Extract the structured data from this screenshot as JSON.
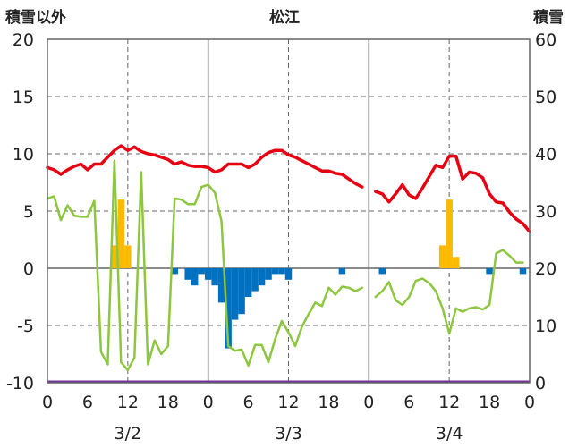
{
  "chart_data": {
    "type": "bar+line",
    "title": "松江",
    "ylabel_left": "積雪以外",
    "ylabel_right": "積雪",
    "ylim_left": [
      -10,
      20
    ],
    "ylim_right": [
      0,
      60
    ],
    "yticks_left": [
      "20",
      "15",
      "10",
      "5",
      "0",
      "-5",
      "-10"
    ],
    "yticks_right": [
      "60",
      "50",
      "40",
      "30",
      "20",
      "10",
      "0"
    ],
    "xlim_hours": [
      0,
      72
    ],
    "xtick_labels": [
      "0",
      "6",
      "12",
      "18",
      "0",
      "6",
      "12",
      "18",
      "0",
      "6",
      "12",
      "18",
      "0"
    ],
    "date_labels": [
      "3/2",
      "3/3",
      "3/4"
    ],
    "grid": true,
    "colors": {
      "temperature": "#e60012",
      "humidity_line": "#8dc63f",
      "snow_bar": "#fbb900",
      "precip_neg_bar": "#0070c0",
      "baseline": "#7030a0"
    },
    "series": [
      {
        "key": "temperature",
        "style": "line",
        "segments": [
          [
            [
              0,
              8.8
            ],
            [
              1,
              8.6
            ],
            [
              2,
              8.2
            ],
            [
              3,
              8.6
            ],
            [
              4,
              8.9
            ],
            [
              5,
              9.1
            ],
            [
              6,
              8.6
            ],
            [
              7,
              9.1
            ],
            [
              8,
              9.1
            ],
            [
              9,
              9.7
            ],
            [
              10,
              10.3
            ],
            [
              11,
              10.7
            ],
            [
              12,
              10.3
            ],
            [
              13,
              10.6
            ],
            [
              14,
              10.2
            ],
            [
              15,
              10.0
            ],
            [
              16,
              9.9
            ],
            [
              17,
              9.7
            ],
            [
              18,
              9.5
            ],
            [
              19,
              9.1
            ],
            [
              20,
              9.3
            ],
            [
              21,
              9.0
            ],
            [
              22,
              8.9
            ],
            [
              23,
              8.9
            ],
            [
              24,
              8.8
            ],
            [
              25,
              8.4
            ],
            [
              26,
              8.6
            ],
            [
              27,
              9.1
            ],
            [
              28,
              9.1
            ],
            [
              29,
              9.1
            ],
            [
              30,
              8.8
            ],
            [
              31,
              9.1
            ],
            [
              32,
              9.7
            ],
            [
              33,
              10.1
            ],
            [
              34,
              10.3
            ],
            [
              35,
              10.3
            ],
            [
              36,
              9.9
            ],
            [
              37,
              9.7
            ],
            [
              38,
              9.4
            ],
            [
              39,
              9.1
            ],
            [
              40,
              8.8
            ],
            [
              41,
              8.5
            ],
            [
              42,
              8.5
            ],
            [
              43,
              8.3
            ],
            [
              44,
              8.2
            ],
            [
              45,
              7.8
            ],
            [
              46,
              7.4
            ],
            [
              47,
              7.1
            ]
          ],
          [
            [
              49,
              6.7
            ],
            [
              50,
              6.5
            ],
            [
              51,
              5.8
            ],
            [
              52,
              6.5
            ],
            [
              53,
              7.3
            ],
            [
              54,
              6.4
            ],
            [
              55,
              6.1
            ],
            [
              56,
              7.0
            ],
            [
              57,
              8.0
            ],
            [
              58,
              9.0
            ],
            [
              59,
              8.8
            ],
            [
              60,
              9.8
            ],
            [
              61,
              9.8
            ],
            [
              62,
              7.8
            ],
            [
              63,
              8.4
            ],
            [
              64,
              8.3
            ],
            [
              65,
              7.9
            ],
            [
              66,
              6.5
            ],
            [
              67,
              5.8
            ],
            [
              68,
              5.7
            ],
            [
              69,
              4.9
            ],
            [
              70,
              4.3
            ],
            [
              71,
              3.9
            ],
            [
              72,
              3.2
            ]
          ]
        ]
      },
      {
        "key": "humidity_line",
        "style": "line",
        "segments": [
          [
            [
              0,
              6.1
            ],
            [
              1,
              6.3
            ],
            [
              2,
              4.2
            ],
            [
              3,
              5.5
            ],
            [
              4,
              4.6
            ],
            [
              5,
              4.5
            ],
            [
              6,
              4.5
            ],
            [
              7,
              5.9
            ],
            [
              8,
              -7.3
            ],
            [
              9,
              -8.4
            ],
            [
              10,
              9.4
            ],
            [
              11,
              -8.2
            ],
            [
              12,
              -8.9
            ],
            [
              13,
              -7.8
            ],
            [
              14,
              8.4
            ],
            [
              15,
              -8.4
            ],
            [
              16,
              -6.3
            ],
            [
              17,
              -7.5
            ],
            [
              18,
              -6.8
            ],
            [
              19,
              6.1
            ],
            [
              20,
              6.0
            ],
            [
              21,
              5.6
            ],
            [
              22,
              5.6
            ],
            [
              23,
              7.1
            ],
            [
              24,
              7.3
            ],
            [
              25,
              6.6
            ],
            [
              26,
              4.1
            ],
            [
              27,
              -6.8
            ],
            [
              28,
              -7.2
            ],
            [
              29,
              -7.1
            ],
            [
              30,
              -8.5
            ],
            [
              31,
              -6.7
            ],
            [
              32,
              -6.7
            ],
            [
              33,
              -8.2
            ],
            [
              34,
              -6.2
            ],
            [
              35,
              -4.6
            ],
            [
              36,
              -5.6
            ],
            [
              37,
              -6.8
            ],
            [
              38,
              -5.1
            ],
            [
              39,
              -4.0
            ],
            [
              40,
              -3.0
            ],
            [
              41,
              -3.3
            ],
            [
              42,
              -1.7
            ],
            [
              43,
              -2.3
            ],
            [
              44,
              -1.6
            ],
            [
              45,
              -1.7
            ],
            [
              46,
              -2.0
            ],
            [
              47,
              -1.7
            ]
          ],
          [
            [
              49,
              -2.5
            ],
            [
              50,
              -2.0
            ],
            [
              51,
              -1.2
            ],
            [
              52,
              -2.8
            ],
            [
              53,
              -3.2
            ],
            [
              54,
              -2.5
            ],
            [
              55,
              -1.1
            ],
            [
              56,
              -0.9
            ],
            [
              57,
              -1.3
            ],
            [
              58,
              -2.0
            ],
            [
              59,
              -3.5
            ],
            [
              60,
              -5.7
            ],
            [
              61,
              -3.5
            ],
            [
              62,
              -3.8
            ],
            [
              63,
              -3.5
            ],
            [
              64,
              -3.4
            ],
            [
              65,
              -3.6
            ],
            [
              66,
              -3.2
            ],
            [
              67,
              1.3
            ],
            [
              68,
              1.6
            ],
            [
              69,
              1.1
            ],
            [
              70,
              0.5
            ],
            [
              71,
              0.5
            ]
          ]
        ]
      },
      {
        "key": "snow_bar",
        "style": "bar",
        "points": [
          [
            10,
            2.0
          ],
          [
            11,
            6.0
          ],
          [
            12,
            2.0
          ],
          [
            59,
            2.0
          ],
          [
            60,
            6.0
          ],
          [
            61,
            1.0
          ]
        ]
      },
      {
        "key": "precip_neg_bar",
        "style": "bar",
        "points": [
          [
            19,
            -0.5
          ],
          [
            21,
            -1.0
          ],
          [
            22,
            -1.5
          ],
          [
            23,
            -0.5
          ],
          [
            24,
            -1.0
          ],
          [
            25,
            -1.5
          ],
          [
            26,
            -3.0
          ],
          [
            27,
            -7.0
          ],
          [
            28,
            -4.5
          ],
          [
            29,
            -4.0
          ],
          [
            30,
            -2.5
          ],
          [
            31,
            -2.0
          ],
          [
            32,
            -1.5
          ],
          [
            33,
            -1.0
          ],
          [
            34,
            -0.5
          ],
          [
            35,
            -0.5
          ],
          [
            36,
            -1.0
          ],
          [
            44,
            -0.5
          ],
          [
            50,
            -0.5
          ],
          [
            66,
            -0.5
          ],
          [
            71,
            -0.5
          ]
        ]
      }
    ]
  }
}
